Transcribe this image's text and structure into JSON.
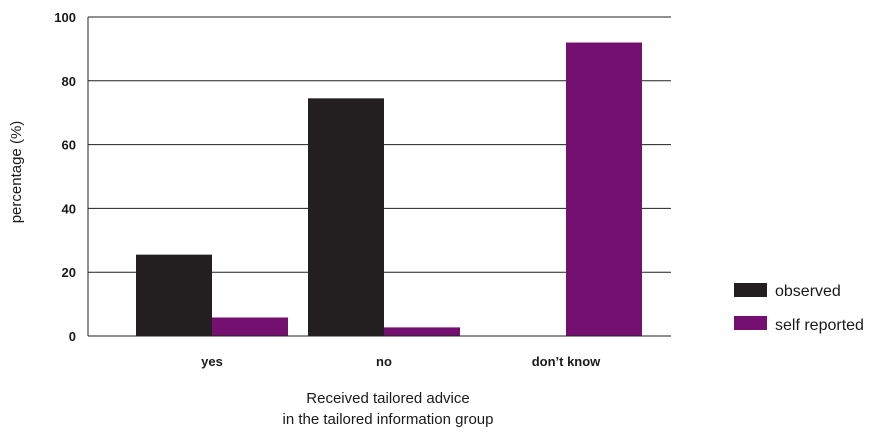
{
  "chart_data": {
    "type": "bar",
    "categories": [
      "yes",
      "no",
      "don’t know"
    ],
    "series": [
      {
        "name": "observed",
        "color": "#231f20",
        "values": [
          25.5,
          74.5,
          0
        ]
      },
      {
        "name": "self reported",
        "color": "#74106f",
        "values": [
          5.8,
          2.7,
          92
        ]
      }
    ],
    "title": "",
    "xlabel_lines": [
      "Received tailored advice",
      "in the tailored information group"
    ],
    "ylabel": "percentage (%)",
    "ylim": [
      0,
      100
    ],
    "yticks": [
      0,
      20,
      40,
      60,
      80,
      100
    ],
    "grid": true,
    "legend_position": "right"
  }
}
